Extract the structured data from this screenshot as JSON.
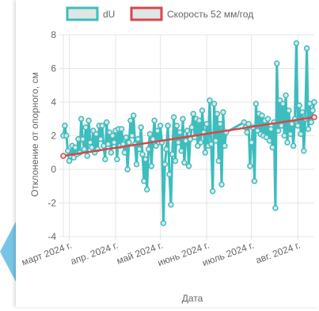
{
  "chart_data": {
    "type": "line",
    "xlabel": "Дата",
    "ylabel": "Отклонение от опорного, см",
    "ylim": [
      -4,
      8
    ],
    "yticks": [
      -4,
      -2,
      0,
      2,
      4,
      6,
      8
    ],
    "grid": true,
    "legend_position": "top",
    "x_tick_labels": [
      "март 2024 г.",
      "апр. 2024 г.",
      "май 2024 г.",
      "июнь 2024 г.",
      "июль 2024 г.",
      "авг. 2024 г."
    ],
    "x_tick_dates": [
      "2024-03-01",
      "2024-04-01",
      "2024-05-01",
      "2024-06-01",
      "2024-07-01",
      "2024-08-01"
    ],
    "x_range": [
      "2024-02-26",
      "2024-08-12"
    ],
    "series": [
      {
        "name": "dU",
        "color": "#3dbdbd",
        "fill": "#dfe6e6",
        "points": [
          [
            "2024-02-26",
            2.0
          ],
          [
            "2024-02-27",
            2.6
          ],
          [
            "2024-02-28",
            2.0
          ],
          [
            "2024-02-29",
            1.1
          ],
          [
            "2024-03-01",
            0.5
          ],
          [
            "2024-03-02",
            0.8
          ],
          [
            "2024-03-03",
            1.4
          ],
          [
            "2024-03-04",
            0.7
          ],
          [
            "2024-03-05",
            1.3
          ],
          [
            "2024-03-06",
            0.9
          ],
          [
            "2024-03-07",
            1.8
          ],
          [
            "2024-03-08",
            1.0
          ],
          [
            "2024-03-09",
            3.0
          ],
          [
            "2024-03-10",
            1.8
          ],
          [
            "2024-03-11",
            1.2
          ],
          [
            "2024-03-12",
            2.5
          ],
          [
            "2024-03-13",
            0.8
          ],
          [
            "2024-03-14",
            2.9
          ],
          [
            "2024-03-15",
            1.6
          ],
          [
            "2024-03-16",
            1.3
          ],
          [
            "2024-03-17",
            2.3
          ],
          [
            "2024-03-18",
            1.0
          ],
          [
            "2024-03-19",
            2.1
          ],
          [
            "2024-03-20",
            1.2
          ],
          [
            "2024-03-21",
            2.6
          ],
          [
            "2024-03-22",
            1.8
          ],
          [
            "2024-03-23",
            2.6
          ],
          [
            "2024-03-24",
            1.4
          ],
          [
            "2024-03-25",
            0.6
          ],
          [
            "2024-03-26",
            2.8
          ],
          [
            "2024-03-27",
            1.5
          ],
          [
            "2024-03-28",
            2.2
          ],
          [
            "2024-03-29",
            1.0
          ],
          [
            "2024-03-30",
            2.0
          ],
          [
            "2024-03-31",
            1.6
          ],
          [
            "2024-04-01",
            2.3
          ],
          [
            "2024-04-02",
            0.6
          ],
          [
            "2024-04-03",
            2.4
          ],
          [
            "2024-04-04",
            1.4
          ],
          [
            "2024-04-05",
            2.4
          ],
          [
            "2024-04-06",
            1.5
          ],
          [
            "2024-04-07",
            1.0
          ],
          [
            "2024-04-08",
            1.9
          ],
          [
            "2024-04-09",
            0.0
          ],
          [
            "2024-04-10",
            1.6
          ],
          [
            "2024-04-11",
            2.9
          ],
          [
            "2024-04-12",
            2.0
          ],
          [
            "2024-04-13",
            3.2
          ],
          [
            "2024-04-14",
            1.5
          ],
          [
            "2024-04-15",
            0.3
          ],
          [
            "2024-04-16",
            1.8
          ],
          [
            "2024-04-17",
            1.2
          ],
          [
            "2024-04-18",
            2.5
          ],
          [
            "2024-04-19",
            0.9
          ],
          [
            "2024-04-20",
            -0.7
          ],
          [
            "2024-04-21",
            0.6
          ],
          [
            "2024-04-22",
            -1.2
          ],
          [
            "2024-04-23",
            1.2
          ],
          [
            "2024-04-24",
            2.1
          ],
          [
            "2024-04-25",
            0.2
          ],
          [
            "2024-04-26",
            1.8
          ],
          [
            "2024-04-27",
            2.9
          ],
          [
            "2024-04-28",
            1.4
          ],
          [
            "2024-04-29",
            2.3
          ],
          [
            "2024-04-30",
            1.6
          ],
          [
            "2024-05-01",
            2.6
          ],
          [
            "2024-05-02",
            1.6
          ],
          [
            "2024-05-03",
            -3.2
          ],
          [
            "2024-05-04",
            0.3
          ],
          [
            "2024-05-05",
            1.2
          ],
          [
            "2024-05-06",
            2.6
          ],
          [
            "2024-05-07",
            -0.3
          ],
          [
            "2024-05-08",
            -2.1
          ],
          [
            "2024-05-09",
            0.9
          ],
          [
            "2024-05-10",
            3.1
          ],
          [
            "2024-05-11",
            0.5
          ],
          [
            "2024-05-12",
            2.6
          ],
          [
            "2024-05-13",
            1.6
          ],
          [
            "2024-05-14",
            2.2
          ],
          [
            "2024-05-15",
            1.1
          ],
          [
            "2024-05-16",
            3.0
          ],
          [
            "2024-05-17",
            0.4
          ],
          [
            "2024-05-18",
            1.7
          ],
          [
            "2024-05-19",
            2.3
          ],
          [
            "2024-05-20",
            0.2
          ],
          [
            "2024-05-21",
            1.8
          ],
          [
            "2024-05-22",
            2.5
          ],
          [
            "2024-05-23",
            3.3
          ],
          [
            "2024-05-24",
            1.9
          ],
          [
            "2024-05-25",
            3.0
          ],
          [
            "2024-05-26",
            1.4
          ],
          [
            "2024-05-27",
            2.9
          ],
          [
            "2024-05-28",
            1.6
          ],
          [
            "2024-05-29",
            3.5
          ],
          [
            "2024-05-30",
            2.2
          ],
          [
            "2024-05-31",
            1.0
          ],
          [
            "2024-06-01",
            2.7
          ],
          [
            "2024-06-02",
            1.4
          ],
          [
            "2024-06-03",
            4.1
          ],
          [
            "2024-06-04",
            1.5
          ],
          [
            "2024-06-05",
            -1.3
          ],
          [
            "2024-06-06",
            3.9
          ],
          [
            "2024-06-07",
            1.7
          ],
          [
            "2024-06-08",
            3.3
          ],
          [
            "2024-06-09",
            0.5
          ],
          [
            "2024-06-10",
            2.7
          ],
          [
            "2024-06-11",
            -0.9
          ],
          [
            "2024-06-12",
            3.4
          ],
          [
            "2024-06-13",
            1.4
          ],
          [
            "2024-06-14",
            2.2
          ],
          [
            "2024-06-26",
            2.8
          ],
          [
            "2024-06-27",
            2.5
          ],
          [
            "2024-06-28",
            2.2
          ],
          [
            "2024-06-29",
            2.7
          ],
          [
            "2024-06-30",
            0.2
          ],
          [
            "2024-07-01",
            1.6
          ],
          [
            "2024-07-02",
            2.5
          ],
          [
            "2024-07-03",
            -0.7
          ],
          [
            "2024-07-04",
            3.9
          ],
          [
            "2024-07-05",
            2.3
          ],
          [
            "2024-07-06",
            3.3
          ],
          [
            "2024-07-07",
            2.1
          ],
          [
            "2024-07-08",
            3.2
          ],
          [
            "2024-07-09",
            2.0
          ],
          [
            "2024-07-10",
            2.9
          ],
          [
            "2024-07-11",
            1.9
          ],
          [
            "2024-07-12",
            3.0
          ],
          [
            "2024-07-13",
            1.7
          ],
          [
            "2024-07-14",
            2.4
          ],
          [
            "2024-07-15",
            1.3
          ],
          [
            "2024-07-16",
            2.8
          ],
          [
            "2024-07-17",
            -2.3
          ],
          [
            "2024-07-18",
            6.3
          ],
          [
            "2024-07-19",
            2.3
          ],
          [
            "2024-07-20",
            4.1
          ],
          [
            "2024-07-21",
            2.6
          ],
          [
            "2024-07-22",
            3.9
          ],
          [
            "2024-07-23",
            2.0
          ],
          [
            "2024-07-24",
            4.4
          ],
          [
            "2024-07-25",
            1.6
          ],
          [
            "2024-07-26",
            3.5
          ],
          [
            "2024-07-27",
            2.1
          ],
          [
            "2024-07-28",
            2.7
          ],
          [
            "2024-07-29",
            1.4
          ],
          [
            "2024-07-30",
            3.0
          ],
          [
            "2024-07-31",
            7.5
          ],
          [
            "2024-08-01",
            2.6
          ],
          [
            "2024-08-02",
            3.8
          ],
          [
            "2024-08-03",
            2.1
          ],
          [
            "2024-08-04",
            3.4
          ],
          [
            "2024-08-05",
            1.1
          ],
          [
            "2024-08-06",
            3.0
          ],
          [
            "2024-08-07",
            7.2
          ],
          [
            "2024-08-08",
            2.4
          ],
          [
            "2024-08-09",
            3.9
          ],
          [
            "2024-08-10",
            2.8
          ],
          [
            "2024-08-11",
            3.5
          ],
          [
            "2024-08-12",
            4.0
          ]
        ]
      },
      {
        "name": "Скорость 52 мм/год",
        "color": "#d9464a",
        "fill": "#dfe6e6",
        "points": [
          [
            "2024-02-26",
            0.8
          ],
          [
            "2024-08-12",
            3.1
          ]
        ]
      }
    ]
  }
}
